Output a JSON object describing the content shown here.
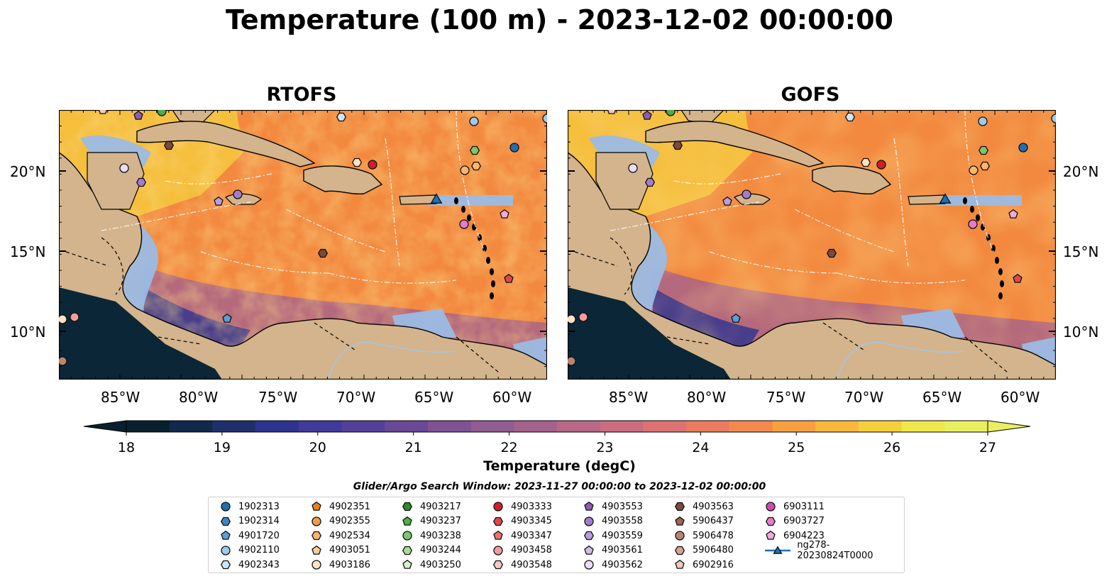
{
  "title": "Temperature (100 m) - 2023-12-02 00:00:00",
  "panels": [
    {
      "title": "RTOFS",
      "model": "rtofs"
    },
    {
      "title": "GOFS",
      "model": "gofs"
    }
  ],
  "lat_ticks": [
    "20°N",
    "15°N",
    "10°N"
  ],
  "lon_ticks": [
    "85°W",
    "80°W",
    "75°W",
    "70°W",
    "65°W",
    "60°W"
  ],
  "colorbar": {
    "label": "Temperature (degC)",
    "min": 18,
    "max": 27,
    "ticks": [
      "18",
      "19",
      "20",
      "21",
      "22",
      "23",
      "24",
      "25",
      "26",
      "27"
    ],
    "colors": [
      "#08202e",
      "#12284d",
      "#1f2f6e",
      "#2e338f",
      "#3f3a9b",
      "#543f9b",
      "#6a4898",
      "#7e5294",
      "#915c91",
      "#a5628c",
      "#b96887",
      "#cb6d7f",
      "#dc7372",
      "#eb7c60",
      "#f4894d",
      "#f8a03f",
      "#f9b83b",
      "#f6d03b",
      "#f0e84a",
      "#e8f060"
    ]
  },
  "search_window": "Glider/Argo Search Window: 2023-11-27 00:00:00 to 2023-12-02 00:00:00",
  "legend": [
    {
      "label": "1902313",
      "marker": "circle",
      "color": "#1f6fb4"
    },
    {
      "label": "1902314",
      "marker": "hexagon",
      "color": "#3d86c4"
    },
    {
      "label": "4901720",
      "marker": "pentagon",
      "color": "#5b9fd6"
    },
    {
      "label": "4902110",
      "marker": "circle",
      "color": "#9ccbec"
    },
    {
      "label": "4902343",
      "marker": "hexagon",
      "color": "#cbe6f8"
    },
    {
      "label": "4902351",
      "marker": "pentagon",
      "color": "#f07f1e"
    },
    {
      "label": "4902355",
      "marker": "circle",
      "color": "#f99a45"
    },
    {
      "label": "4902534",
      "marker": "hexagon",
      "color": "#fbb56f"
    },
    {
      "label": "4903051",
      "marker": "pentagon",
      "color": "#fccd9a"
    },
    {
      "label": "4903186",
      "marker": "circle",
      "color": "#fde2c3"
    },
    {
      "label": "4903217",
      "marker": "hexagon",
      "color": "#2c8c2c"
    },
    {
      "label": "4903237",
      "marker": "pentagon",
      "color": "#4fae45"
    },
    {
      "label": "4903238",
      "marker": "circle",
      "color": "#79c86b"
    },
    {
      "label": "4903244",
      "marker": "hexagon",
      "color": "#a6de98"
    },
    {
      "label": "4903250",
      "marker": "pentagon",
      "color": "#d2f2c8"
    },
    {
      "label": "4903333",
      "marker": "circle",
      "color": "#d11f26"
    },
    {
      "label": "4903345",
      "marker": "hexagon",
      "color": "#e0484c"
    },
    {
      "label": "4903347",
      "marker": "pentagon",
      "color": "#ec7273"
    },
    {
      "label": "4903458",
      "marker": "circle",
      "color": "#f59c9c"
    },
    {
      "label": "4903548",
      "marker": "hexagon",
      "color": "#fbc6c5"
    },
    {
      "label": "4903553",
      "marker": "pentagon",
      "color": "#8a5cb8"
    },
    {
      "label": "4903558",
      "marker": "circle",
      "color": "#a37ccb"
    },
    {
      "label": "4903559",
      "marker": "hexagon",
      "color": "#bc9cdc"
    },
    {
      "label": "4903561",
      "marker": "pentagon",
      "color": "#d4bdeb"
    },
    {
      "label": "4903562",
      "marker": "circle",
      "color": "#ecdcf8"
    },
    {
      "label": "4903563",
      "marker": "hexagon",
      "color": "#7b4a3a"
    },
    {
      "label": "5906437",
      "marker": "pentagon",
      "color": "#9a6553"
    },
    {
      "label": "5906478",
      "marker": "circle",
      "color": "#bb8470"
    },
    {
      "label": "5906480",
      "marker": "hexagon",
      "color": "#d7a493"
    },
    {
      "label": "6902916",
      "marker": "pentagon",
      "color": "#f0c8bb"
    },
    {
      "label": "6903111",
      "marker": "circle",
      "color": "#d447b5"
    },
    {
      "label": "6903727",
      "marker": "hexagon",
      "color": "#e57ccb"
    },
    {
      "label": "6904223",
      "marker": "pentagon",
      "color": "#f2aadd"
    },
    {
      "label": "ng278-20230824T0000",
      "marker": "triangle-line",
      "color": "#1f6fb4"
    }
  ],
  "colors": {
    "land": "#d3b48c",
    "shallow": "#9bbbe4",
    "deep": "#0b2636",
    "hot": "#f6d03b",
    "warm": "#f2893f",
    "mid": "#a5628c",
    "cool": "#2e338f"
  }
}
